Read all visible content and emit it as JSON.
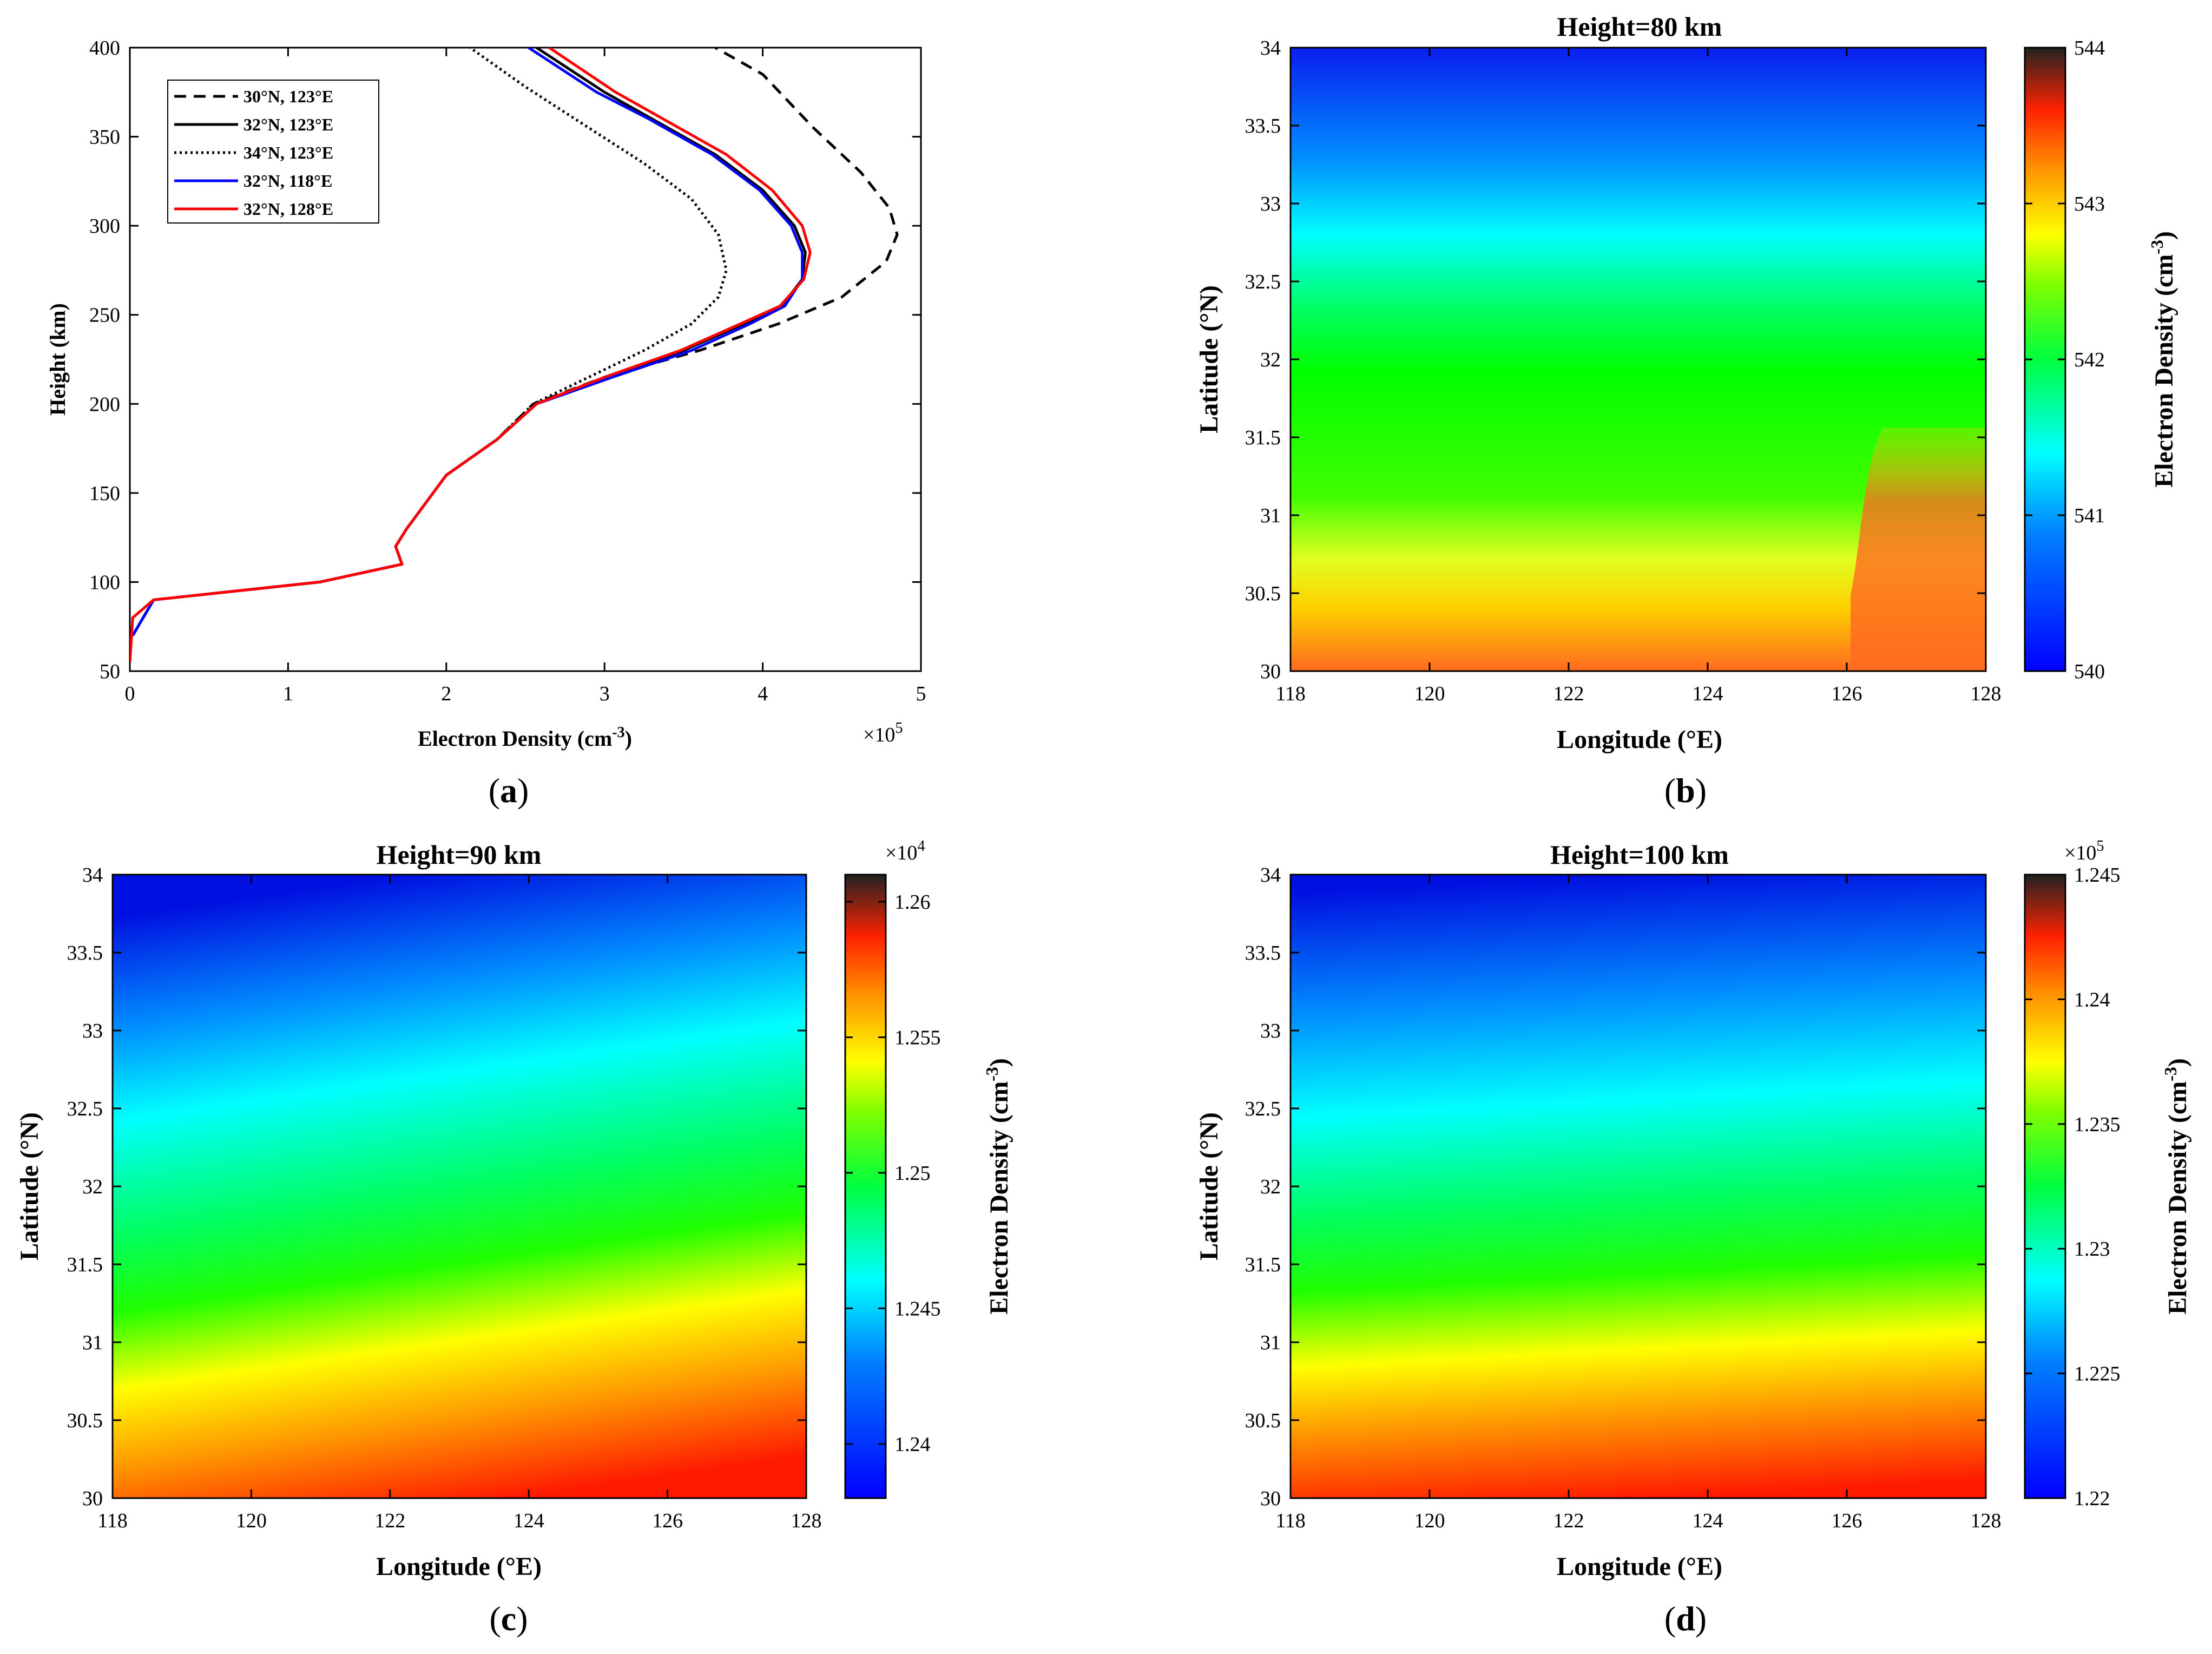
{
  "panel_labels": [
    "a",
    "b",
    "c",
    "d"
  ],
  "chart_data": [
    {
      "panel": "a",
      "type": "line",
      "xlabel": "Electron Density (cm",
      "xlabel_sup": "-3",
      "xlabel_close": ")",
      "ylabel": "Height (km)",
      "xlim": [
        0,
        500000
      ],
      "ylim": [
        50,
        400
      ],
      "xticks": [
        0,
        1,
        2,
        3,
        4,
        5
      ],
      "yticks": [
        50,
        100,
        150,
        200,
        250,
        300,
        350,
        400
      ],
      "x_multiplier": "×10",
      "x_multiplier_exp": "5",
      "legend_placement": "top-left",
      "series": [
        {
          "name": "30°N, 123°E",
          "color": "#000000",
          "dash": "dashed",
          "x": [
            1800,
            15000,
            120000,
            172000,
            168000,
            175000,
            200000,
            232000,
            255000,
            300000,
            360000,
            410000,
            450000,
            478000,
            485000,
            480000,
            462000,
            432000,
            400000,
            370000
          ],
          "y": [
            70,
            90,
            100,
            110,
            120,
            130,
            160,
            180,
            200,
            215,
            230,
            245,
            260,
            280,
            295,
            310,
            330,
            355,
            385,
            400
          ]
        },
        {
          "name": "32°N, 123°E",
          "color": "#000000",
          "dash": "solid",
          "x": [
            1800,
            15000,
            120000,
            172000,
            168000,
            175000,
            200000,
            232000,
            257000,
            302000,
            350000,
            388000,
            412000,
            425000,
            427000,
            420000,
            400000,
            370000,
            330000,
            300000,
            257000
          ],
          "y": [
            70,
            90,
            100,
            110,
            120,
            130,
            160,
            180,
            200,
            215,
            230,
            245,
            255,
            270,
            285,
            300,
            320,
            340,
            360,
            375,
            400
          ]
        },
        {
          "name": "34°N, 123°E",
          "color": "#000000",
          "dash": "dotted",
          "x": [
            1800,
            15000,
            120000,
            172000,
            168000,
            175000,
            200000,
            232000,
            255000,
            290000,
            325000,
            355000,
            372000,
            377000,
            372000,
            355000,
            325000,
            290000,
            250000,
            215000
          ],
          "y": [
            70,
            90,
            100,
            110,
            120,
            130,
            160,
            180,
            200,
            215,
            230,
            245,
            260,
            275,
            295,
            315,
            335,
            355,
            378,
            400
          ]
        },
        {
          "name": "32°N, 118°E",
          "color": "#0000ff",
          "dash": "solid",
          "x": [
            1800,
            15000,
            120000,
            172000,
            168000,
            175000,
            200000,
            232000,
            257000,
            305000,
            355000,
            392000,
            414000,
            425000,
            425000,
            418000,
            398000,
            368000,
            328000,
            295000,
            252000
          ],
          "y": [
            70,
            90,
            100,
            110,
            120,
            130,
            160,
            180,
            200,
            215,
            230,
            245,
            255,
            270,
            285,
            300,
            320,
            340,
            360,
            375,
            400
          ]
        },
        {
          "name": "32°N, 128°E",
          "color": "#ff0000",
          "dash": "solid",
          "x": [
            0,
            1800,
            15000,
            120000,
            172000,
            168000,
            175000,
            200000,
            232000,
            257000,
            300000,
            348000,
            386000,
            411000,
            426000,
            430000,
            425000,
            406000,
            377000,
            337000,
            307000,
            265000
          ],
          "y": [
            55,
            80,
            90,
            100,
            110,
            120,
            130,
            160,
            180,
            200,
            215,
            230,
            245,
            255,
            270,
            285,
            300,
            320,
            340,
            360,
            375,
            400
          ]
        }
      ]
    },
    {
      "panel": "b",
      "type": "heatmap",
      "title": "Height=80 km",
      "xlabel": "Longitude (°E)",
      "ylabel": "Latitude (°N)",
      "xlim": [
        118,
        128
      ],
      "ylim": [
        30,
        34
      ],
      "xticks": [
        118,
        120,
        122,
        124,
        126,
        128
      ],
      "yticks": [
        30,
        30.5,
        31,
        31.5,
        32,
        32.5,
        33,
        33.5,
        34
      ],
      "colorbar": {
        "label": "Electron Density (cm",
        "label_sup": "-3",
        "label_close": ")",
        "range": [
          540,
          544
        ],
        "ticks": [
          540,
          541,
          542,
          543,
          544
        ],
        "multiplier": "",
        "multiplier_exp": ""
      },
      "colormap": "jet"
    },
    {
      "panel": "c",
      "type": "heatmap",
      "title": "Height=90 km",
      "xlabel": "Longitude (°E)",
      "ylabel": "Latitude (°N)",
      "xlim": [
        118,
        128
      ],
      "ylim": [
        30,
        34
      ],
      "xticks": [
        118,
        120,
        122,
        124,
        126,
        128
      ],
      "yticks": [
        30,
        30.5,
        31,
        31.5,
        32,
        32.5,
        33,
        33.5,
        34
      ],
      "colorbar": {
        "label": "Electron Density (cm",
        "label_sup": "-3",
        "label_close": ")",
        "range": [
          1.238,
          1.261
        ],
        "ticks": [
          1.24,
          1.245,
          1.25,
          1.255,
          1.26
        ],
        "multiplier": "×10",
        "multiplier_exp": "4"
      },
      "colormap": "jet"
    },
    {
      "panel": "d",
      "type": "heatmap",
      "title": "Height=100 km",
      "xlabel": "Longitude (°E)",
      "ylabel": "Latitude (°N)",
      "xlim": [
        118,
        128
      ],
      "ylim": [
        30,
        34
      ],
      "xticks": [
        118,
        120,
        122,
        124,
        126,
        128
      ],
      "yticks": [
        30,
        30.5,
        31,
        31.5,
        32,
        32.5,
        33,
        33.5,
        34
      ],
      "colorbar": {
        "label": "Electron Density (cm",
        "label_sup": "-3",
        "label_close": ")",
        "range": [
          1.22,
          1.245
        ],
        "ticks": [
          1.22,
          1.225,
          1.23,
          1.235,
          1.24,
          1.245
        ],
        "multiplier": "×10",
        "multiplier_exp": "5"
      },
      "colormap": "jet"
    }
  ]
}
